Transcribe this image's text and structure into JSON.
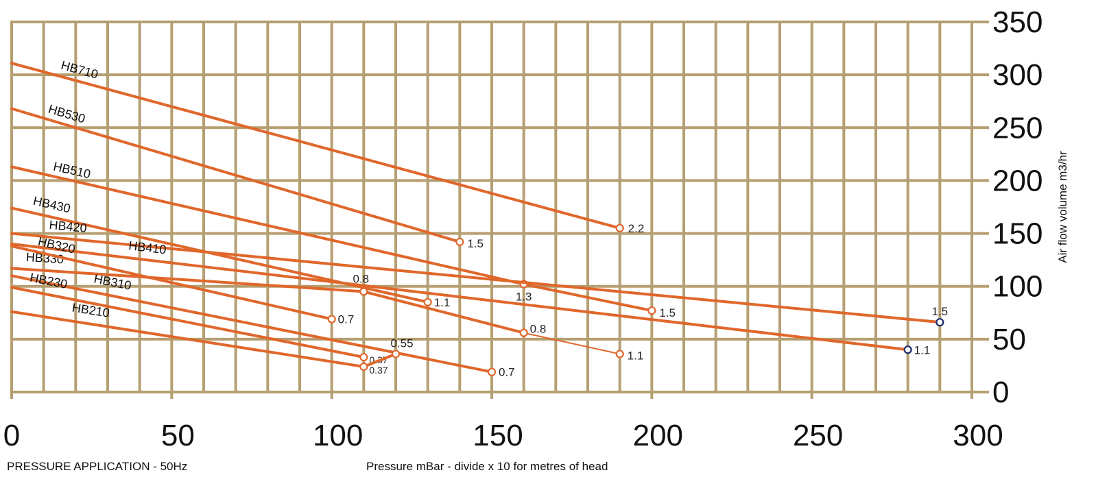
{
  "footer": {
    "left_text": "PRESSURE APPLICATION - 50Hz"
  },
  "chart_data": {
    "type": "line",
    "title": "",
    "xlabel": "Pressure mBar - divide x 10 for metres of head",
    "ylabel": "Air flow volume m3/hr",
    "xlim": [
      0,
      300
    ],
    "ylim": [
      0,
      350
    ],
    "x_ticks": [
      0,
      50,
      100,
      150,
      200,
      250,
      300
    ],
    "y_ticks": [
      0,
      50,
      100,
      150,
      200,
      250,
      300,
      350
    ],
    "x_tick_labels": [
      "0",
      "50",
      "100",
      "150",
      "200",
      "250",
      "300"
    ],
    "y_tick_labels": [
      "0",
      "50",
      "100",
      "150",
      "200",
      "250",
      "300",
      "350"
    ],
    "grid": true,
    "colors": {
      "grid": "#b59f72",
      "line": "#e0672b",
      "end_marker_alt": "#1c2a6b"
    },
    "series": [
      {
        "name": "HB710",
        "x": [
          0,
          190
        ],
        "y": [
          311,
          155
        ],
        "end_labels": [
          "",
          "2.2"
        ]
      },
      {
        "name": "HB530",
        "x": [
          0,
          140
        ],
        "y": [
          268,
          142
        ],
        "end_labels": [
          "",
          "1.5"
        ]
      },
      {
        "name": "HB510",
        "x": [
          0,
          160,
          200
        ],
        "y": [
          213,
          102,
          77
        ],
        "end_labels": [
          "",
          "1.3",
          "1.5"
        ]
      },
      {
        "name": "HB430",
        "x": [
          0,
          130
        ],
        "y": [
          174,
          85
        ],
        "end_labels": [
          "",
          "1.1"
        ]
      },
      {
        "name": "HB420",
        "x": [
          0,
          290
        ],
        "y": [
          150,
          66
        ],
        "end_labels": [
          "",
          "1.5"
        ]
      },
      {
        "name": "HB410",
        "x": [
          0,
          280
        ],
        "y": [
          140,
          40
        ],
        "end_labels": [
          "",
          "1.1"
        ]
      },
      {
        "name": "HB330",
        "x": [
          0,
          110,
          160,
          190
        ],
        "y": [
          117,
          95,
          56,
          36
        ],
        "end_labels": [
          "",
          "0.8",
          "0.8",
          "1.1"
        ]
      },
      {
        "name": "HB320",
        "x": [
          0,
          100
        ],
        "y": [
          138,
          69
        ],
        "end_labels": [
          "",
          "0.7"
        ]
      },
      {
        "name": "HB310",
        "x": [
          0,
          150
        ],
        "y": [
          110,
          19
        ],
        "end_labels": [
          "",
          "0.7"
        ]
      },
      {
        "name": "HB230",
        "x": [
          0,
          110
        ],
        "y": [
          99,
          33
        ],
        "end_labels": [
          "",
          "0.37"
        ]
      },
      {
        "name": "HB210",
        "x": [
          0,
          110,
          120
        ],
        "y": [
          76,
          24,
          36
        ],
        "end_labels": [
          "",
          "0.37",
          "0.55"
        ]
      }
    ]
  }
}
